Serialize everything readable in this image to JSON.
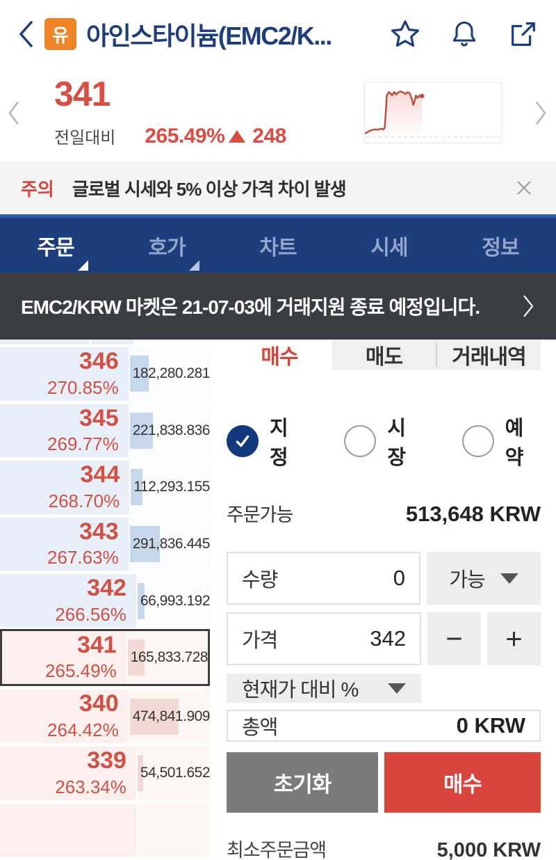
{
  "header": {
    "badge": "유",
    "title": "아인스타이늄(EMC2/K..."
  },
  "price": {
    "current": "341",
    "change_label": "전일대비",
    "change_percent": "265.49%",
    "change_value": "248",
    "sparkline": [
      [
        0.0,
        0.93
      ],
      [
        0.04,
        0.87
      ],
      [
        0.07,
        0.85
      ],
      [
        0.1,
        0.85
      ],
      [
        0.12,
        0.83
      ],
      [
        0.135,
        0.85
      ],
      [
        0.145,
        0.82
      ],
      [
        0.155,
        0.45
      ],
      [
        0.16,
        0.18
      ],
      [
        0.175,
        0.1
      ],
      [
        0.19,
        0.13
      ],
      [
        0.2,
        0.17
      ],
      [
        0.215,
        0.1
      ],
      [
        0.23,
        0.15
      ],
      [
        0.245,
        0.11
      ],
      [
        0.26,
        0.09
      ],
      [
        0.28,
        0.11
      ],
      [
        0.3,
        0.14
      ],
      [
        0.315,
        0.1
      ],
      [
        0.33,
        0.13
      ],
      [
        0.345,
        0.24
      ],
      [
        0.355,
        0.36
      ],
      [
        0.365,
        0.28
      ],
      [
        0.375,
        0.17
      ],
      [
        0.385,
        0.22
      ],
      [
        0.4,
        0.17
      ],
      [
        0.41,
        0.2
      ],
      [
        0.42,
        0.18
      ]
    ]
  },
  "warning": {
    "tag": "주의",
    "message": "글로벌 시세와 5% 이상 가격 차이 발생"
  },
  "nav": {
    "tabs": [
      {
        "key": "order",
        "label": "주문",
        "active": true,
        "caret": true
      },
      {
        "key": "quotes",
        "label": "호가",
        "active": false,
        "caret": true
      },
      {
        "key": "chart",
        "label": "차트",
        "active": false,
        "caret": false
      },
      {
        "key": "market",
        "label": "시세",
        "active": false,
        "caret": false
      },
      {
        "key": "info",
        "label": "정보",
        "active": false,
        "caret": false
      }
    ]
  },
  "notice": {
    "text": "EMC2/KRW 마켓은 21-07-03에 거래지원 종료 예정입니다."
  },
  "orderbook": {
    "rows": [
      {
        "price": "346",
        "percent": "270.85%",
        "volume": "182,280.281",
        "side": "ask",
        "current": false
      },
      {
        "price": "345",
        "percent": "269.77%",
        "volume": "221,838.836",
        "side": "ask",
        "current": false
      },
      {
        "price": "344",
        "percent": "268.70%",
        "volume": "112,293.155",
        "side": "ask",
        "current": false
      },
      {
        "price": "343",
        "percent": "267.63%",
        "volume": "291,836.445",
        "side": "ask",
        "current": false
      },
      {
        "price": "342",
        "percent": "266.56%",
        "volume": "66,993.192",
        "side": "ask",
        "current": false
      },
      {
        "price": "341",
        "percent": "265.49%",
        "volume": "165,833.728",
        "side": "bid",
        "current": true
      },
      {
        "price": "340",
        "percent": "264.42%",
        "volume": "474,841.909",
        "side": "bid",
        "current": false
      },
      {
        "price": "339",
        "percent": "263.34%",
        "volume": "54,501.652",
        "side": "bid",
        "current": false
      }
    ]
  },
  "order_panel": {
    "tabs": [
      {
        "key": "buy",
        "label": "매수",
        "active": true
      },
      {
        "key": "sell",
        "label": "매도",
        "active": false
      },
      {
        "key": "history",
        "label": "거래내역",
        "active": false
      }
    ],
    "order_types": [
      {
        "key": "limit",
        "label": "지정",
        "checked": true
      },
      {
        "key": "market",
        "label": "시장",
        "checked": false
      },
      {
        "key": "reserve",
        "label": "예약",
        "checked": false
      }
    ],
    "available_label": "주문가능",
    "available_value": "513,648 KRW",
    "quantity_label": "수량",
    "quantity_value": "0",
    "quantity_unit": "가능",
    "price_label": "가격",
    "price_value": "342",
    "minus": "−",
    "plus": "+",
    "adjust_label": "현재가 대비 %",
    "total_label": "총액",
    "total_value": "0 KRW",
    "reset_button": "초기화",
    "buy_button": "매수",
    "footer_label": "최소주문금액",
    "footer_value": "5,000 KRW"
  },
  "colors": {
    "navy": "#1e3d7c",
    "red": "#d9453c",
    "orange_badge": "#ee8425",
    "ask_bg": "#e9eff8",
    "ask_bar": "#c7d7ec",
    "bid_bg": "#fcf0ee",
    "bid_bar": "#f3d9d4",
    "spark_line": "#c0493e",
    "spark_fill": "rgba(214,82,68,0.22)"
  }
}
